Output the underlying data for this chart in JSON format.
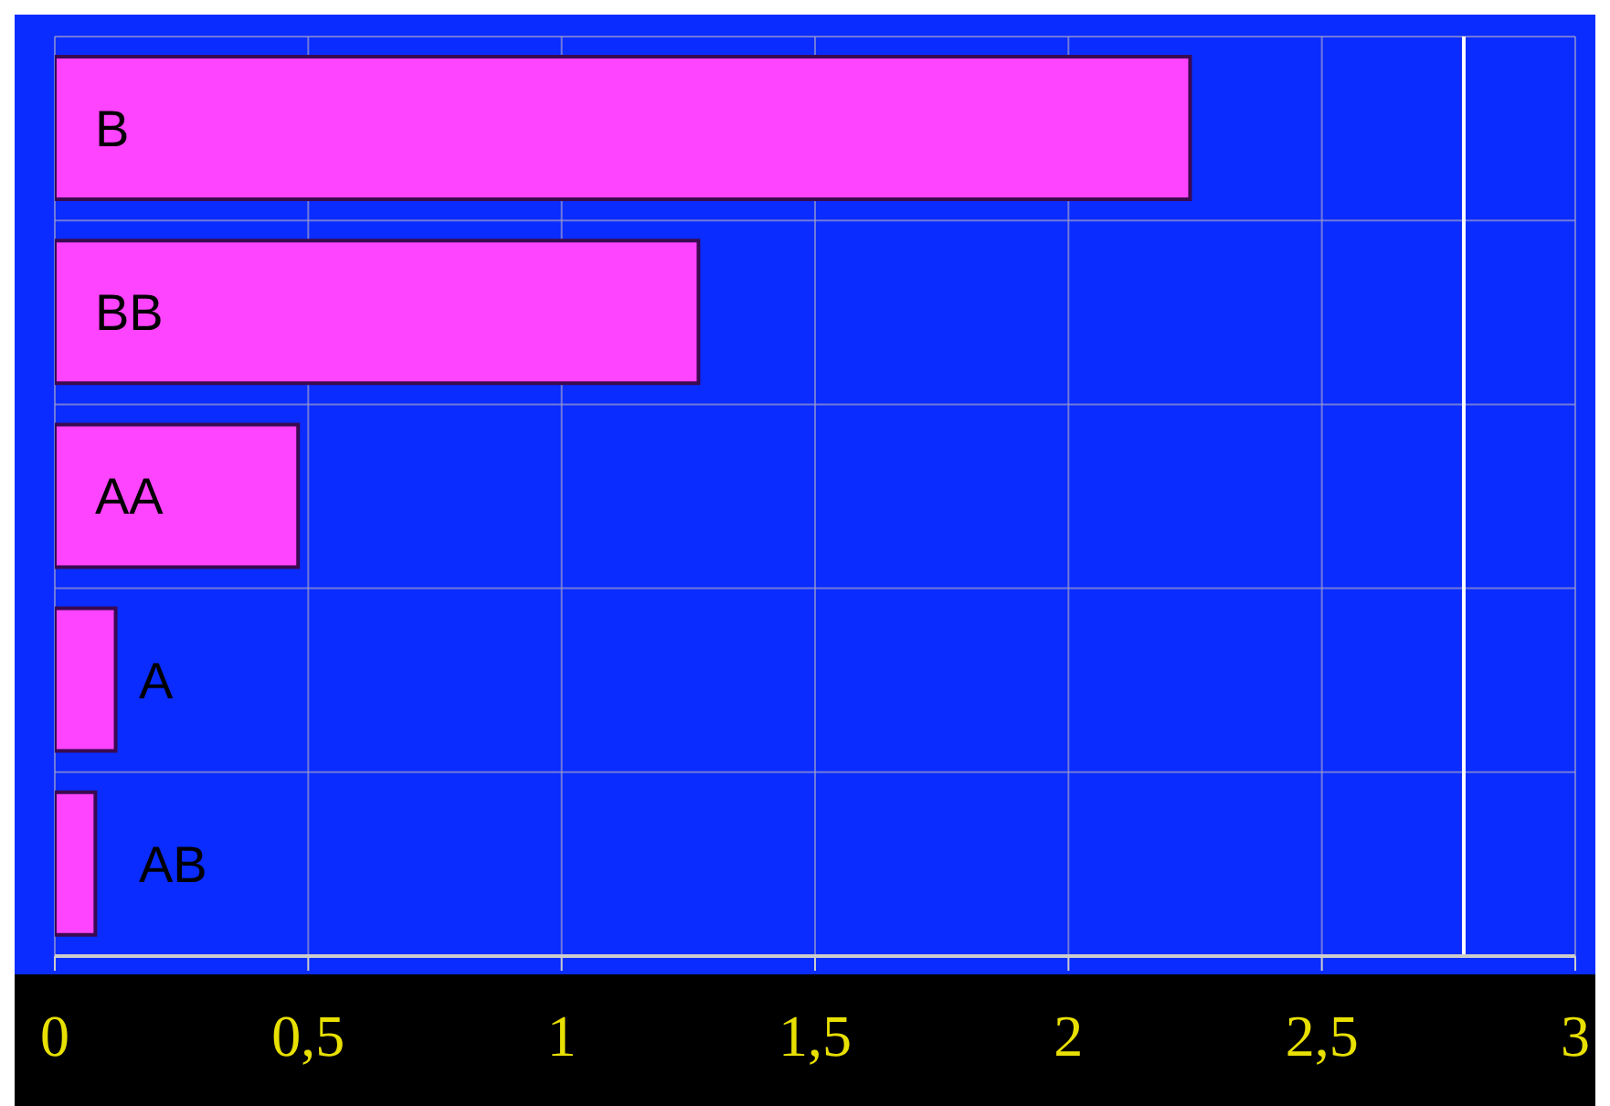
{
  "chart_data": {
    "type": "bar",
    "orientation": "horizontal",
    "categories": [
      "B",
      "BB",
      "AA",
      "A",
      "AB"
    ],
    "values": [
      2.24,
      1.27,
      0.48,
      0.12,
      0.08
    ],
    "color": "#ff44ff",
    "xlim": [
      0,
      3
    ],
    "xticks": [
      0,
      {
        "value": 0.5,
        "label": "0,5"
      },
      1,
      {
        "value": 1.5,
        "label": "1,5"
      },
      2,
      {
        "value": 2.5,
        "label": "2,5"
      },
      3
    ],
    "ref_lines": [
      {
        "axis": "x",
        "value": 2.78,
        "color": "#ffffff"
      }
    ],
    "grid": true,
    "tick_labels": "x"
  }
}
